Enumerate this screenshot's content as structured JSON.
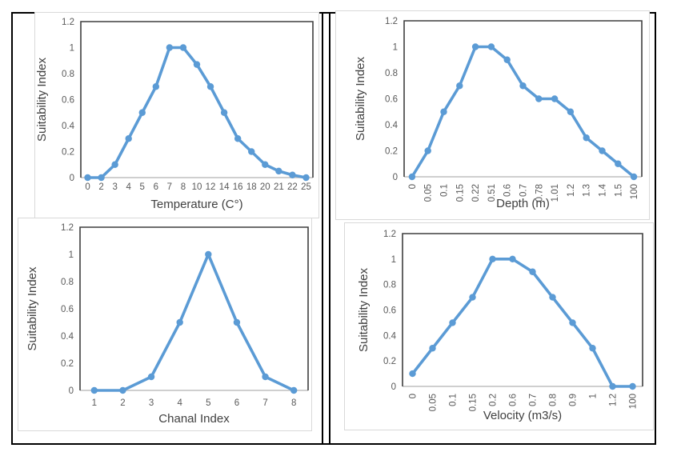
{
  "style": {
    "background": "#FFFFFF",
    "table_border_color": "#000000",
    "panel_border_color": "#D9D9D9",
    "plot_border_color": "#3F3F3F",
    "axis_line_color": "#BFBFBF",
    "tick_label_color": "#595959",
    "axis_title_color": "#404040",
    "accent_line_color": "#5B9BD5"
  },
  "chart_data": [
    {
      "type": "line",
      "title": "",
      "xlabel": "Temperature (C°)",
      "ylabel": "Suitability Index",
      "categories": [
        "0",
        "2",
        "3",
        "4",
        "5",
        "6",
        "7",
        "8",
        "10",
        "12",
        "14",
        "16",
        "18",
        "20",
        "21",
        "22",
        "25"
      ],
      "values": [
        0,
        0,
        0.1,
        0.3,
        0.5,
        0.7,
        1,
        1,
        0.87,
        0.7,
        0.5,
        0.3,
        0.2,
        0.1,
        0.05,
        0.02,
        0
      ],
      "yticks": [
        0,
        0.2,
        0.4,
        0.6,
        0.8,
        1,
        1.2
      ],
      "ylim": [
        0,
        1.2
      ],
      "grid": false,
      "legend": "none",
      "marker": "circle",
      "line_color": "#5B9BD5",
      "xtick_rotation": 0
    },
    {
      "type": "line",
      "title": "",
      "xlabel": "Depth (m)",
      "ylabel": "Suitability Index",
      "categories": [
        "0",
        "0.05",
        "0.1",
        "0.15",
        "0.22",
        "0.51",
        "0.6",
        "0.7",
        "0.78",
        "1.01",
        "1.2",
        "1.3",
        "1.4",
        "1.5",
        "100"
      ],
      "values": [
        0,
        0.2,
        0.5,
        0.7,
        1,
        1,
        0.9,
        0.7,
        0.6,
        0.6,
        0.5,
        0.3,
        0.2,
        0.1,
        0
      ],
      "yticks": [
        0,
        0.2,
        0.4,
        0.6,
        0.8,
        1,
        1.2
      ],
      "ylim": [
        0,
        1.2
      ],
      "grid": false,
      "legend": "none",
      "marker": "circle",
      "line_color": "#5B9BD5",
      "xtick_rotation": 90
    },
    {
      "type": "line",
      "title": "",
      "xlabel": "Chanal Index",
      "ylabel": "Suitability Index",
      "categories": [
        "1",
        "2",
        "3",
        "4",
        "5",
        "6",
        "7",
        "8"
      ],
      "values": [
        0,
        0,
        0.1,
        0.5,
        1,
        0.5,
        0.1,
        0
      ],
      "yticks": [
        0,
        0.2,
        0.4,
        0.6,
        0.8,
        1,
        1.2
      ],
      "ylim": [
        0,
        1.2
      ],
      "grid": false,
      "legend": "none",
      "marker": "circle",
      "line_color": "#5B9BD5",
      "xtick_rotation": 0
    },
    {
      "type": "line",
      "title": "",
      "xlabel": "Velocity (m3/s)",
      "ylabel": "Suitability Index",
      "categories": [
        "0",
        "0.05",
        "0.1",
        "0.15",
        "0.2",
        "0.6",
        "0.7",
        "0.8",
        "0.9",
        "1",
        "1.2",
        "100"
      ],
      "values": [
        0.1,
        0.3,
        0.5,
        0.7,
        1,
        1,
        0.9,
        0.7,
        0.5,
        0.3,
        0,
        0
      ],
      "yticks": [
        0,
        0.2,
        0.4,
        0.6,
        0.8,
        1,
        1.2
      ],
      "ylim": [
        0,
        1.2
      ],
      "grid": false,
      "legend": "none",
      "marker": "circle",
      "line_color": "#5B9BD5",
      "xtick_rotation": 90
    }
  ]
}
